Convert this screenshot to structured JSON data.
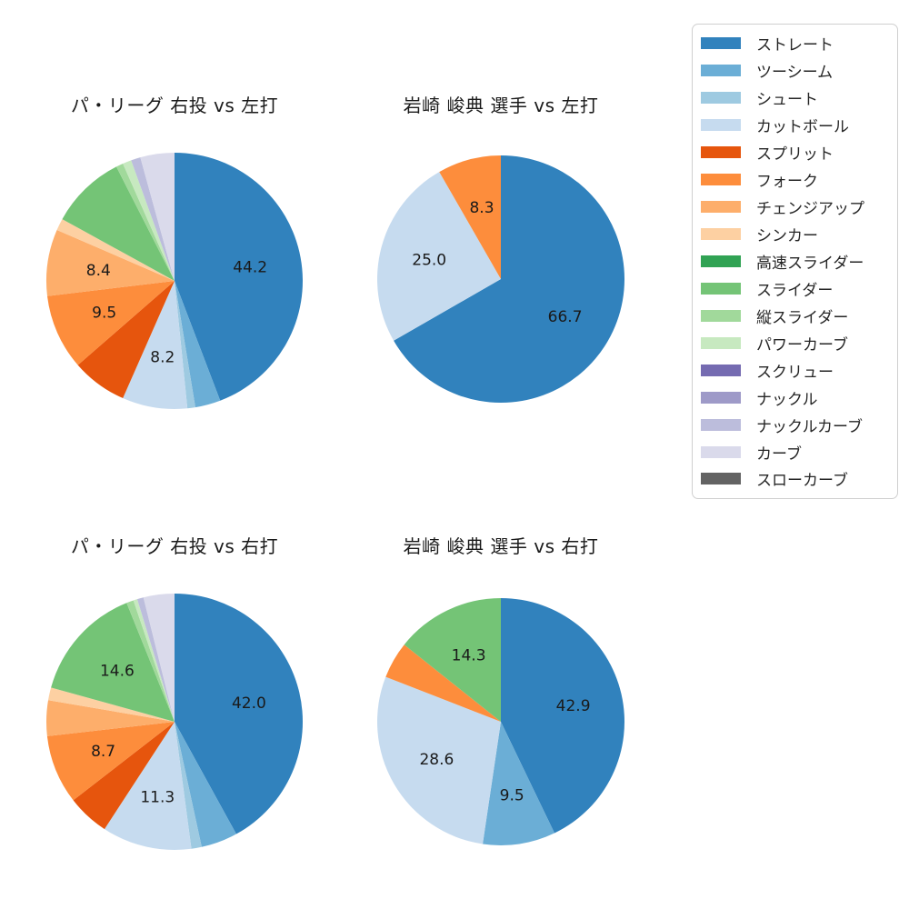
{
  "figure": {
    "background": "#ffffff",
    "text_color": "#1a1a1a"
  },
  "legend": {
    "position": "top-right",
    "items": [
      {
        "key": "straight",
        "label": "ストレート",
        "color": "#3182bd"
      },
      {
        "key": "two-seam",
        "label": "ツーシーム",
        "color": "#6baed6"
      },
      {
        "key": "shuuto",
        "label": "シュート",
        "color": "#9ecae1"
      },
      {
        "key": "cutball",
        "label": "カットボール",
        "color": "#c6dbef"
      },
      {
        "key": "split",
        "label": "スプリット",
        "color": "#e6550d"
      },
      {
        "key": "fork",
        "label": "フォーク",
        "color": "#fd8d3c"
      },
      {
        "key": "changeup",
        "label": "チェンジアップ",
        "color": "#fdae6b"
      },
      {
        "key": "sinker",
        "label": "シンカー",
        "color": "#fdd0a2"
      },
      {
        "key": "high-speed-slider",
        "label": "高速スライダー",
        "color": "#31a354"
      },
      {
        "key": "slider",
        "label": "スライダー",
        "color": "#74c476"
      },
      {
        "key": "vertical-slider",
        "label": "縦スライダー",
        "color": "#a1d99b"
      },
      {
        "key": "power-curve",
        "label": "パワーカーブ",
        "color": "#c7e9c0"
      },
      {
        "key": "screw",
        "label": "スクリュー",
        "color": "#756bb1"
      },
      {
        "key": "knuckle",
        "label": "ナックル",
        "color": "#9e9ac8"
      },
      {
        "key": "knuckle-curve",
        "label": "ナックルカーブ",
        "color": "#bcbddc"
      },
      {
        "key": "curve",
        "label": "カーブ",
        "color": "#dadaeb"
      },
      {
        "key": "slow-curve",
        "label": "スローカーブ",
        "color": "#636363"
      }
    ]
  },
  "chart_data": [
    {
      "type": "pie",
      "title": "パ・リーグ 右投 vs 左打",
      "start_angle": "top",
      "direction": "clockwise",
      "slices": [
        {
          "key": "straight",
          "pitch": "ストレート",
          "value": 44.2,
          "label": "44.2",
          "color": "#3182bd"
        },
        {
          "key": "two-seam",
          "pitch": "ツーシーム",
          "value": 3.2,
          "label": "",
          "color": "#6baed6"
        },
        {
          "key": "shuuto",
          "pitch": "シュート",
          "value": 1.0,
          "label": "",
          "color": "#9ecae1"
        },
        {
          "key": "cutball",
          "pitch": "カットボール",
          "value": 8.2,
          "label": "8.2",
          "color": "#c6dbef"
        },
        {
          "key": "split",
          "pitch": "スプリット",
          "value": 7.0,
          "label": "",
          "color": "#e6550d"
        },
        {
          "key": "fork",
          "pitch": "フォーク",
          "value": 9.5,
          "label": "9.5",
          "color": "#fd8d3c"
        },
        {
          "key": "changeup",
          "pitch": "チェンジアップ",
          "value": 8.4,
          "label": "8.4",
          "color": "#fdae6b"
        },
        {
          "key": "sinker",
          "pitch": "シンカー",
          "value": 1.5,
          "label": "",
          "color": "#fdd0a2"
        },
        {
          "key": "slider",
          "pitch": "スライダー",
          "value": 9.5,
          "label": "",
          "color": "#74c476"
        },
        {
          "key": "vertical-slider",
          "pitch": "縦スライダー",
          "value": 0.9,
          "label": "",
          "color": "#a1d99b"
        },
        {
          "key": "power-curve",
          "pitch": "パワーカーブ",
          "value": 1.1,
          "label": "",
          "color": "#c7e9c0"
        },
        {
          "key": "knuckle-curve",
          "pitch": "ナックルカーブ",
          "value": 1.2,
          "label": "",
          "color": "#bcbddc"
        },
        {
          "key": "curve",
          "pitch": "カーブ",
          "value": 4.3,
          "label": "",
          "color": "#dadaeb"
        }
      ]
    },
    {
      "type": "pie",
      "title": "岩崎 峻典 選手 vs 左打",
      "start_angle": "top",
      "direction": "clockwise",
      "slices": [
        {
          "key": "straight",
          "pitch": "ストレート",
          "value": 66.7,
          "label": "66.7",
          "color": "#3182bd"
        },
        {
          "key": "cutball",
          "pitch": "カットボール",
          "value": 25.0,
          "label": "25.0",
          "color": "#c6dbef"
        },
        {
          "key": "fork",
          "pitch": "フォーク",
          "value": 8.3,
          "label": "8.3",
          "color": "#fd8d3c"
        }
      ]
    },
    {
      "type": "pie",
      "title": "パ・リーグ 右投 vs 右打",
      "start_angle": "top",
      "direction": "clockwise",
      "slices": [
        {
          "key": "straight",
          "pitch": "ストレート",
          "value": 42.0,
          "label": "42.0",
          "color": "#3182bd"
        },
        {
          "key": "two-seam",
          "pitch": "ツーシーム",
          "value": 4.6,
          "label": "",
          "color": "#6baed6"
        },
        {
          "key": "shuuto",
          "pitch": "シュート",
          "value": 1.3,
          "label": "",
          "color": "#9ecae1"
        },
        {
          "key": "cutball",
          "pitch": "カットボール",
          "value": 11.3,
          "label": "11.3",
          "color": "#c6dbef"
        },
        {
          "key": "split",
          "pitch": "スプリット",
          "value": 5.3,
          "label": "",
          "color": "#e6550d"
        },
        {
          "key": "fork",
          "pitch": "フォーク",
          "value": 8.7,
          "label": "8.7",
          "color": "#fd8d3c"
        },
        {
          "key": "changeup",
          "pitch": "チェンジアップ",
          "value": 4.5,
          "label": "",
          "color": "#fdae6b"
        },
        {
          "key": "sinker",
          "pitch": "シンカー",
          "value": 1.6,
          "label": "",
          "color": "#fdd0a2"
        },
        {
          "key": "slider",
          "pitch": "スライダー",
          "value": 14.6,
          "label": "14.6",
          "color": "#74c476"
        },
        {
          "key": "vertical-slider",
          "pitch": "縦スライダー",
          "value": 0.9,
          "label": "",
          "color": "#a1d99b"
        },
        {
          "key": "power-curve",
          "pitch": "パワーカーブ",
          "value": 0.5,
          "label": "",
          "color": "#c7e9c0"
        },
        {
          "key": "knuckle-curve",
          "pitch": "ナックルカーブ",
          "value": 0.8,
          "label": "",
          "color": "#bcbddc"
        },
        {
          "key": "curve",
          "pitch": "カーブ",
          "value": 3.9,
          "label": "",
          "color": "#dadaeb"
        }
      ]
    },
    {
      "type": "pie",
      "title": "岩崎 峻典 選手 vs 右打",
      "start_angle": "top",
      "direction": "clockwise",
      "slices": [
        {
          "key": "straight",
          "pitch": "ストレート",
          "value": 42.9,
          "label": "42.9",
          "color": "#3182bd"
        },
        {
          "key": "two-seam",
          "pitch": "ツーシーム",
          "value": 9.5,
          "label": "9.5",
          "color": "#6baed6"
        },
        {
          "key": "cutball",
          "pitch": "カットボール",
          "value": 28.6,
          "label": "28.6",
          "color": "#c6dbef"
        },
        {
          "key": "fork",
          "pitch": "フォーク",
          "value": 4.8,
          "label": "",
          "color": "#fd8d3c"
        },
        {
          "key": "slider",
          "pitch": "スライダー",
          "value": 14.3,
          "label": "14.3",
          "color": "#74c476"
        }
      ]
    }
  ]
}
